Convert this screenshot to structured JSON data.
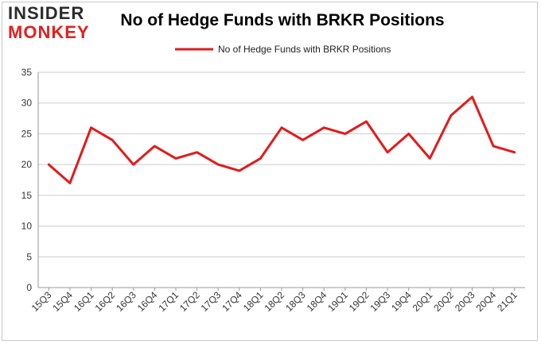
{
  "logo": {
    "line1": "INSIDER",
    "line2": "MONKEY"
  },
  "colors": {
    "series": "#e21b1b",
    "grid": "#cccccc",
    "axis": "#999999",
    "logo_red": "#e0201f"
  },
  "chart_data": {
    "type": "line",
    "title": "No of Hedge Funds with BRKR Positions",
    "xlabel": "",
    "ylabel": "",
    "ylim": [
      0,
      35
    ],
    "yticks": [
      0,
      5,
      10,
      15,
      20,
      25,
      30,
      35
    ],
    "grid": "horizontal",
    "legend": "top-center",
    "categories": [
      "15Q3",
      "15Q4",
      "16Q1",
      "16Q2",
      "16Q3",
      "16Q4",
      "17Q1",
      "17Q2",
      "17Q3",
      "17Q4",
      "18Q1",
      "18Q2",
      "18Q3",
      "18Q4",
      "19Q1",
      "19Q2",
      "19Q3",
      "19Q4",
      "20Q1",
      "20Q2",
      "20Q3",
      "20Q4",
      "21Q1"
    ],
    "series": [
      {
        "name": "No of Hedge Funds with BRKR Positions",
        "values": [
          20,
          17,
          26,
          24,
          20,
          23,
          21,
          22,
          20,
          19,
          21,
          26,
          24,
          26,
          25,
          27,
          22,
          25,
          21,
          28,
          31,
          23,
          22
        ]
      }
    ]
  }
}
